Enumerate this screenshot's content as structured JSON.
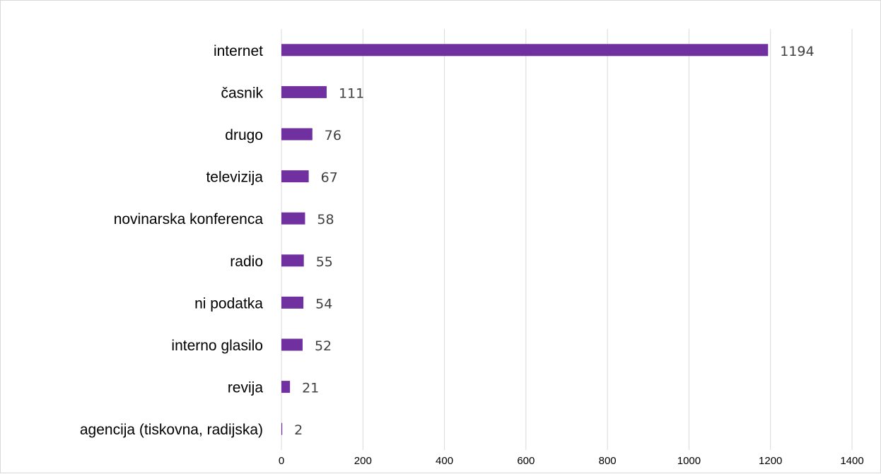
{
  "chart_data": {
    "type": "bar",
    "orientation": "horizontal",
    "title": "",
    "xlabel": "",
    "ylabel": "",
    "categories": [
      "internet",
      "časnik",
      "drugo",
      "televizija",
      "novinarska konferenca",
      "radio",
      "ni podatka",
      "interno glasilo",
      "revija",
      "agencija (tiskovna, radijska)"
    ],
    "values": [
      1194,
      111,
      76,
      67,
      58,
      55,
      54,
      52,
      21,
      2
    ],
    "xlim": [
      0,
      1400
    ],
    "xticks": [
      0,
      200,
      400,
      600,
      800,
      1000,
      1200,
      1400
    ],
    "grid": true,
    "legend": "none",
    "data_labels": true,
    "bar_color": "#7030a0"
  }
}
